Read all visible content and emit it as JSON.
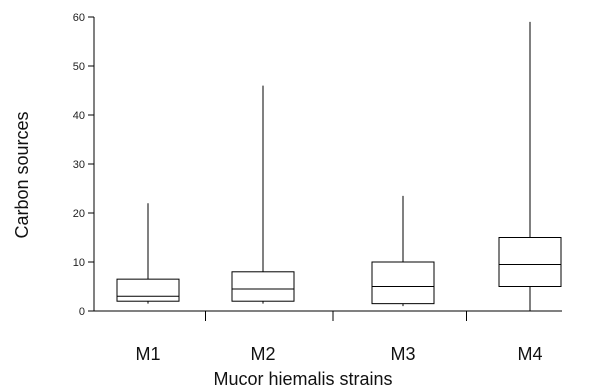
{
  "chart_data": {
    "type": "box",
    "title": "",
    "xlabel": "Mucor hiemalis strains",
    "ylabel": "Carbon sources",
    "ylim": [
      0,
      60
    ],
    "yticks": [
      0,
      10,
      20,
      30,
      40,
      50,
      60
    ],
    "grid": false,
    "categories": [
      "M1",
      "M2",
      "M3",
      "M4"
    ],
    "boxes": [
      {
        "label": "M1",
        "min": 1.5,
        "q1": 2,
        "median": 3,
        "q3": 6.5,
        "max": 22
      },
      {
        "label": "M2",
        "min": 1.5,
        "q1": 2,
        "median": 4.5,
        "q3": 8,
        "max": 46
      },
      {
        "label": "M3",
        "min": 1,
        "q1": 1.5,
        "median": 5,
        "q3": 10,
        "max": 23.5
      },
      {
        "label": "M4",
        "min": 0,
        "q1": 5,
        "median": 9.5,
        "q3": 15,
        "max": 59
      }
    ],
    "colors": {
      "line": "#000000",
      "box_fill": "#ffffff"
    }
  }
}
